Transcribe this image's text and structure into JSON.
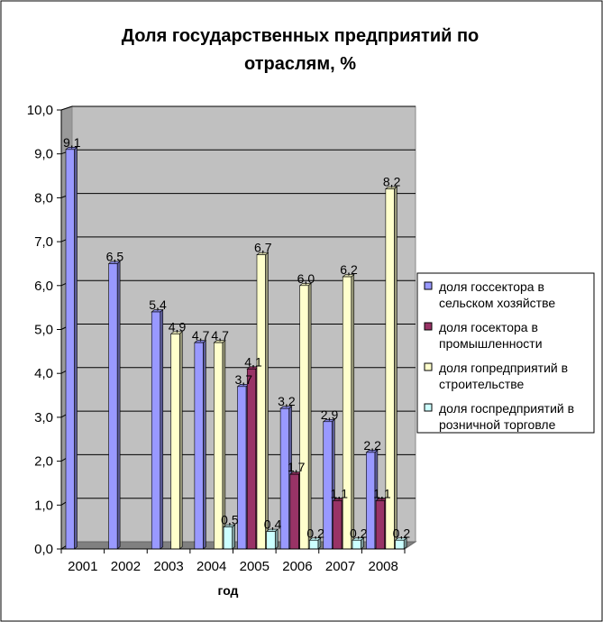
{
  "chart_data": {
    "type": "bar",
    "title": "Доля государственных предприятий по отраслям, %",
    "title_lines": [
      "Доля государственных предприятий по",
      "отраслям, %"
    ],
    "xlabel": "год",
    "ylabel": "",
    "ylim": [
      0,
      10
    ],
    "yticks": [
      "0,0",
      "1,0",
      "2,0",
      "3,0",
      "4,0",
      "5,0",
      "6,0",
      "7,0",
      "8,0",
      "9,0",
      "10,0"
    ],
    "categories": [
      "2001",
      "2002",
      "2003",
      "2004",
      "2005",
      "2006",
      "2007",
      "2008"
    ],
    "grid": true,
    "legend_position": "right",
    "series": [
      {
        "name": "доля госсектора в сельском хозяйстве",
        "legend_lines": [
          "доля госсектора в",
          "сельском хозяйстве"
        ],
        "color": "#9999ff",
        "values": [
          9.1,
          6.5,
          5.4,
          4.7,
          3.7,
          3.2,
          2.9,
          2.2
        ],
        "labels": [
          "9,1",
          "6,5",
          "5,4",
          "4,7",
          "3,7",
          "3,2",
          "2,9",
          "2,2"
        ]
      },
      {
        "name": "доля госектора в промышленности",
        "legend_lines": [
          "доля госектора в",
          "промышленности"
        ],
        "color": "#993366",
        "values": [
          null,
          null,
          null,
          null,
          4.1,
          1.7,
          1.1,
          1.1
        ],
        "labels": [
          "",
          "",
          "",
          "",
          "4,1",
          "1,7",
          "1,1",
          "1,1"
        ]
      },
      {
        "name": "доля гопредприятий в строительстве",
        "legend_lines": [
          "доля гопредприятий в",
          "строительстве"
        ],
        "color": "#ffffcc",
        "values": [
          null,
          null,
          4.9,
          4.7,
          6.7,
          6.0,
          6.2,
          8.2
        ],
        "labels": [
          "",
          "",
          "4,9",
          "4,7",
          "6,7",
          "6,0",
          "6,2",
          "8,2"
        ]
      },
      {
        "name": "доля госпредприятий в розничной торговле",
        "legend_lines": [
          "доля госпредприятий в",
          "розничной торговле"
        ],
        "color": "#ccffff",
        "values": [
          null,
          null,
          null,
          0.5,
          0.4,
          0.2,
          0.2,
          0.2
        ],
        "labels": [
          "",
          "",
          "",
          "0,5",
          "0,4",
          "0,2",
          "0,2",
          "0,2"
        ]
      }
    ]
  }
}
